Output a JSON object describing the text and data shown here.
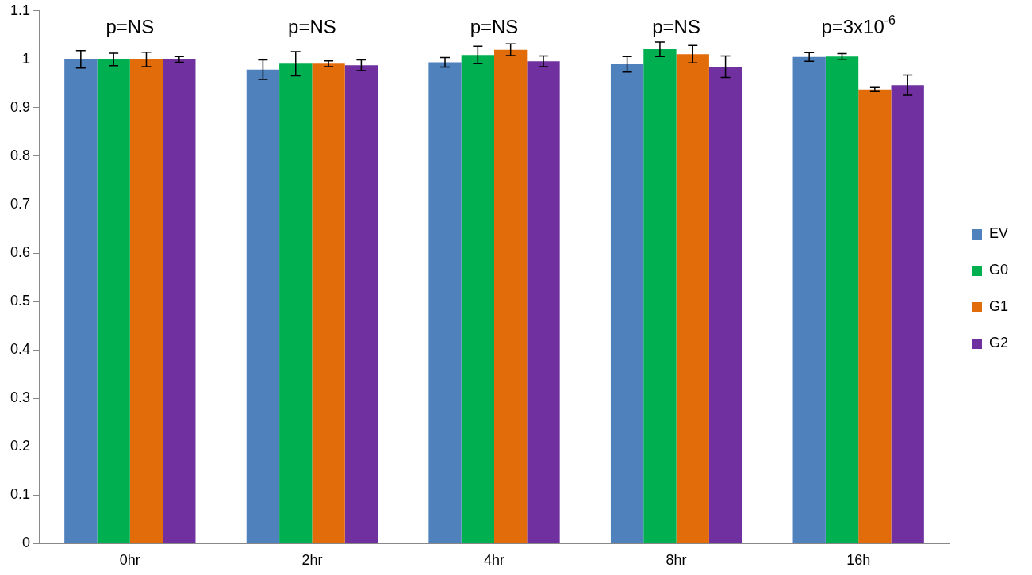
{
  "chart_data": {
    "type": "bar",
    "categories": [
      "0hr",
      "2hr",
      "4hr",
      "8hr",
      "16h"
    ],
    "series": [
      {
        "name": "EV",
        "color": "#4f81bd",
        "values": [
          1.0,
          0.979,
          0.994,
          0.99,
          1.005
        ],
        "errors": [
          0.018,
          0.02,
          0.01,
          0.016,
          0.009
        ]
      },
      {
        "name": "G0",
        "color": "#00b050",
        "values": [
          1.0,
          0.991,
          1.009,
          1.021,
          1.006
        ],
        "errors": [
          0.013,
          0.025,
          0.018,
          0.015,
          0.006
        ]
      },
      {
        "name": "G1",
        "color": "#e36c0a",
        "values": [
          1.0,
          0.991,
          1.02,
          1.011,
          0.938
        ],
        "errors": [
          0.015,
          0.006,
          0.012,
          0.018,
          0.004
        ]
      },
      {
        "name": "G2",
        "color": "#7030a0",
        "values": [
          1.0,
          0.988,
          0.996,
          0.985,
          0.947
        ],
        "errors": [
          0.006,
          0.011,
          0.011,
          0.022,
          0.021
        ]
      }
    ],
    "ylim": [
      0,
      1.1
    ],
    "yticks": [
      0,
      0.1,
      0.2,
      0.3,
      0.4,
      0.5,
      0.6,
      0.7,
      0.8,
      0.9,
      1,
      1.1
    ],
    "grid": false,
    "legend": "right",
    "annotations": [
      "p=NS",
      "p=NS",
      "p=NS",
      "p=NS",
      "p=3x10$^{-6}$"
    ]
  }
}
